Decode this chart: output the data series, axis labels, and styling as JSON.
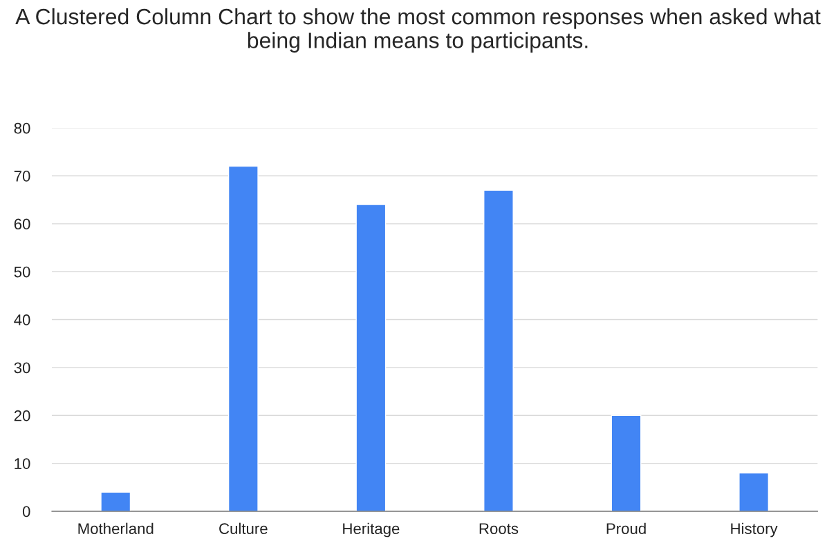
{
  "chart_data": {
    "type": "bar",
    "title": "A Clustered Column Chart to show the most common responses when asked what being Indian means to participants.",
    "categories": [
      "Motherland",
      "Culture",
      "Heritage",
      "Roots",
      "Proud",
      "History"
    ],
    "values": [
      4,
      72,
      64,
      67,
      20,
      8
    ],
    "color": "#4285f4",
    "ylim": [
      0,
      80
    ],
    "yticks": [
      0,
      10,
      20,
      30,
      40,
      50,
      60,
      70,
      80
    ],
    "grid": "y",
    "legend": false
  }
}
